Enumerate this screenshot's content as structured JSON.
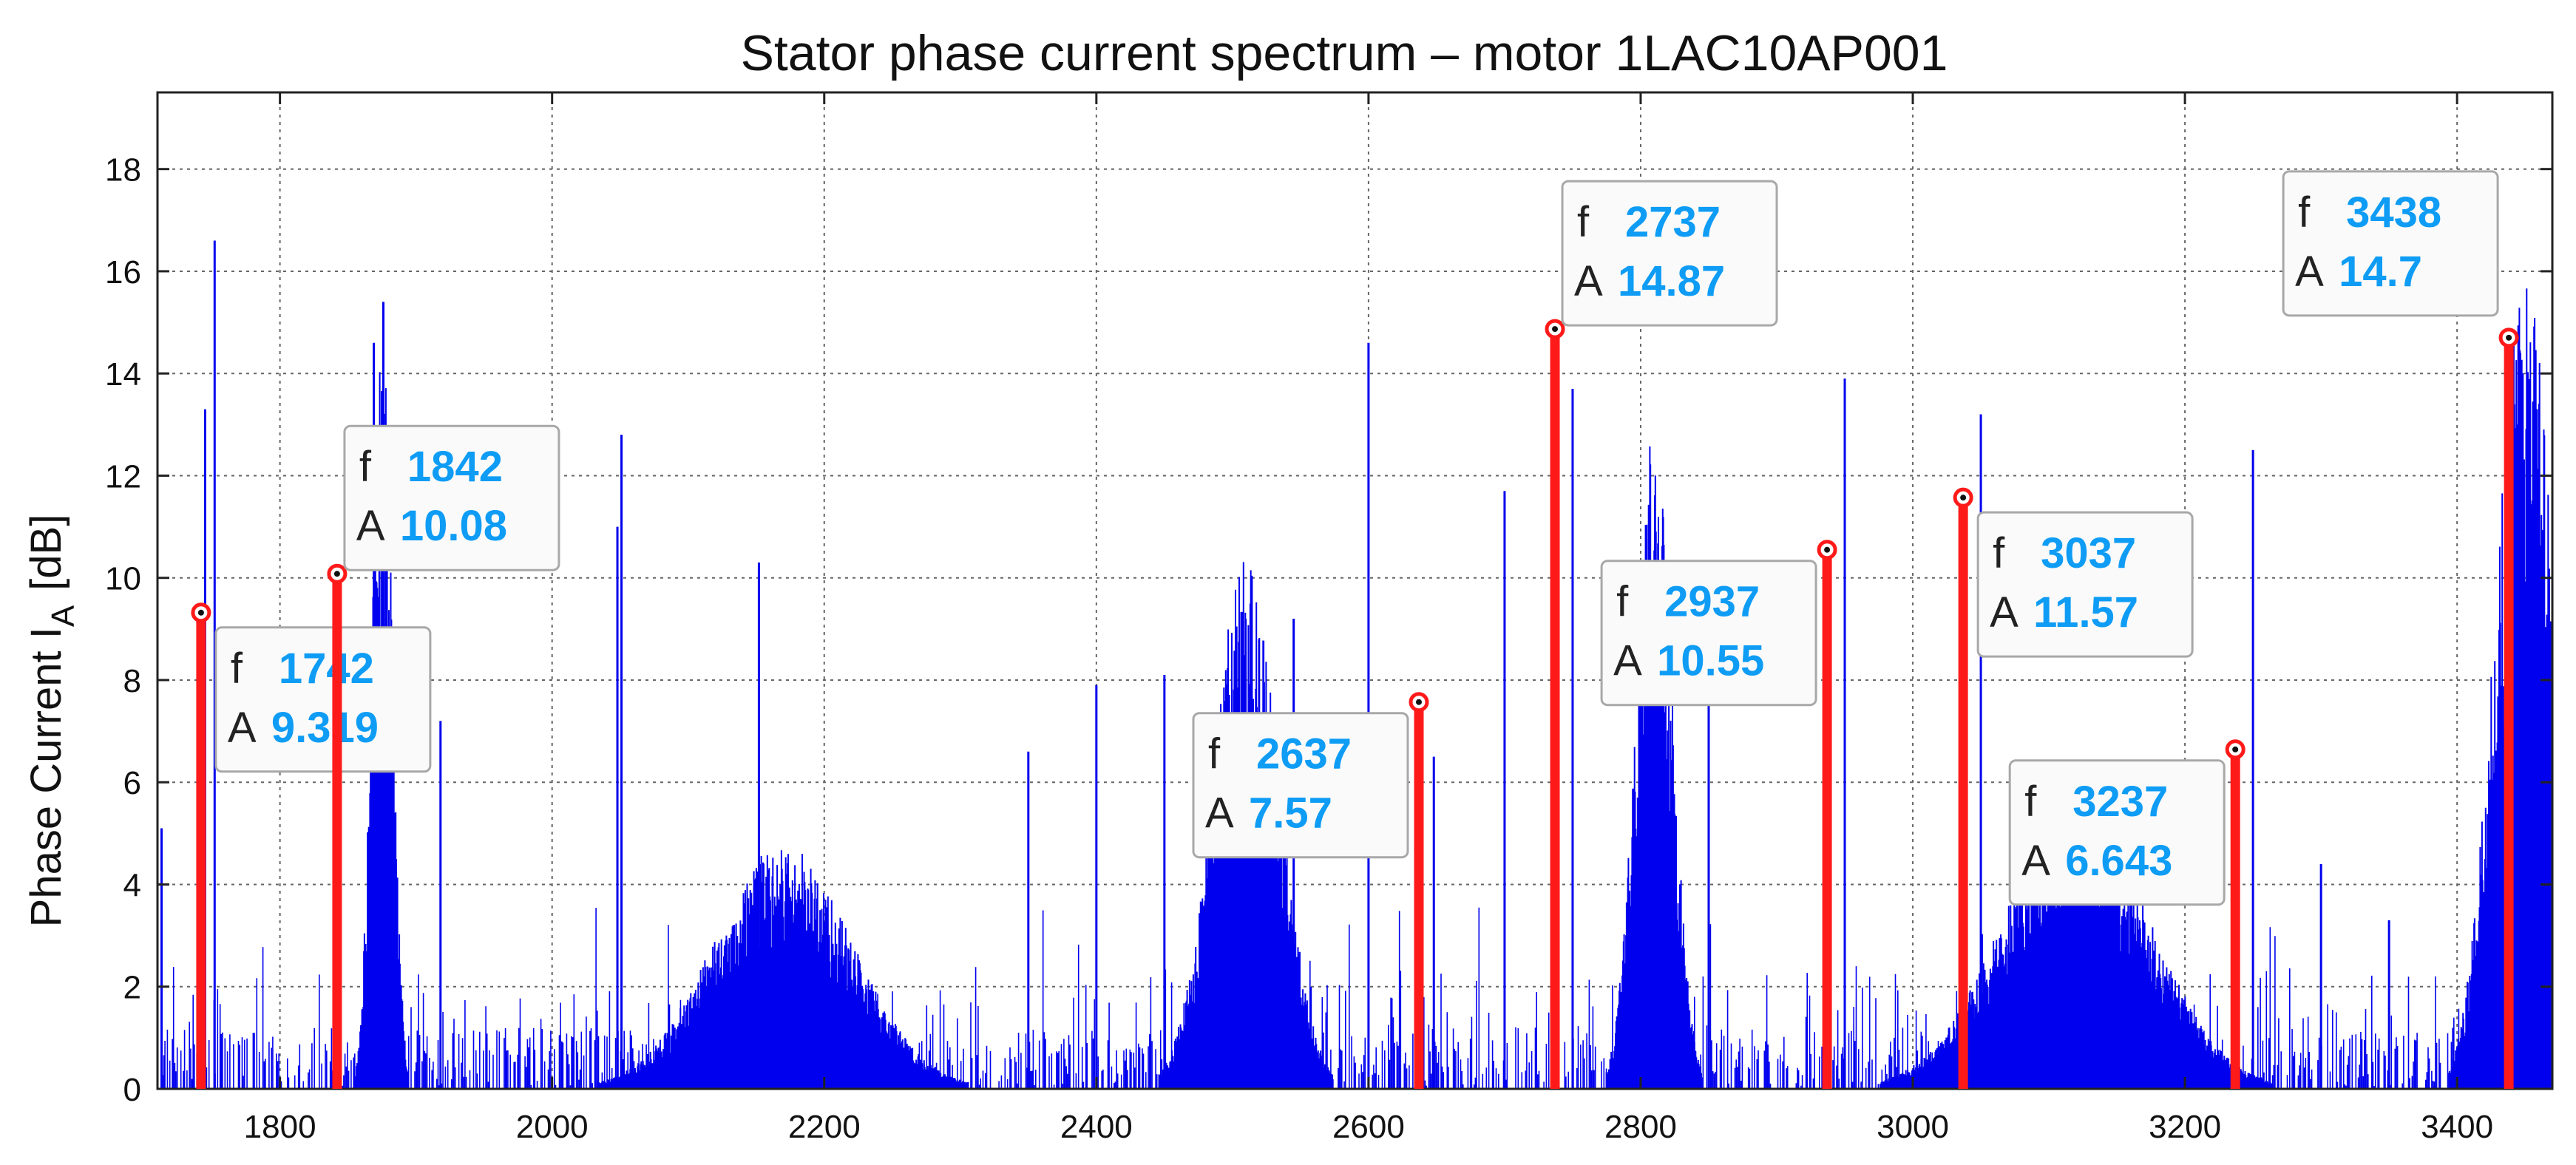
{
  "chart_data": {
    "type": "bar",
    "title": "Stator phase current spectrum  – motor 1LAC10AP001",
    "xlabel": "",
    "ylabel": "Phase Current I",
    "ylabel_subscript": "A",
    "ylabel_unit": "[dB]",
    "xlim": [
      1710,
      3470
    ],
    "ylim": [
      0,
      19.5
    ],
    "x_ticks": [
      1800,
      2000,
      2200,
      2400,
      2600,
      2800,
      3000,
      3200,
      3400
    ],
    "y_ticks": [
      0,
      2,
      4,
      6,
      8,
      10,
      12,
      14,
      16,
      18
    ],
    "grid": true,
    "series_color": "#0000ee",
    "marker_color": "#ff1a1a",
    "box_value_color": "#0e9cf5",
    "spectrum_clusters": [
      {
        "center": 1875,
        "width": 12,
        "peak": 15.4
      },
      {
        "center": 2170,
        "width": 85,
        "peak": 4.8
      },
      {
        "center": 2510,
        "width": 40,
        "peak": 10.5
      },
      {
        "center": 2810,
        "width": 22,
        "peak": 13.2
      },
      {
        "center": 3120,
        "width": 90,
        "peak": 5.5
      },
      {
        "center": 3450,
        "width": 35,
        "peak": 16.5
      }
    ],
    "spectrum_spikes": [
      {
        "x": 1713,
        "y": 5.1
      },
      {
        "x": 1745,
        "y": 13.3
      },
      {
        "x": 1752,
        "y": 16.6
      },
      {
        "x": 1869,
        "y": 14.6
      },
      {
        "x": 1876,
        "y": 15.4
      },
      {
        "x": 1918,
        "y": 7.2
      },
      {
        "x": 2048,
        "y": 11.0
      },
      {
        "x": 2051,
        "y": 12.8
      },
      {
        "x": 2152,
        "y": 10.3
      },
      {
        "x": 2350,
        "y": 6.6
      },
      {
        "x": 2400,
        "y": 7.9
      },
      {
        "x": 2450,
        "y": 8.1
      },
      {
        "x": 2545,
        "y": 9.2
      },
      {
        "x": 2600,
        "y": 14.6
      },
      {
        "x": 2648,
        "y": 6.5
      },
      {
        "x": 2700,
        "y": 11.7
      },
      {
        "x": 2750,
        "y": 13.7
      },
      {
        "x": 2850,
        "y": 7.9
      },
      {
        "x": 2950,
        "y": 13.9
      },
      {
        "x": 3050,
        "y": 13.2
      },
      {
        "x": 3250,
        "y": 12.5
      },
      {
        "x": 3300,
        "y": 4.4
      },
      {
        "x": 3350,
        "y": 3.3
      }
    ],
    "markers": [
      {
        "f": "1742",
        "A": "9.319",
        "x": 1742,
        "y": 9.319,
        "box_side": "right-below"
      },
      {
        "f": "1842",
        "A": "10.08",
        "x": 1842,
        "y": 10.08,
        "box_side": "right-above"
      },
      {
        "f": "2637",
        "A": "7.57",
        "x": 2637,
        "y": 7.57,
        "box_side": "left-below"
      },
      {
        "f": "2737",
        "A": "14.87",
        "x": 2737,
        "y": 14.87,
        "box_side": "right-above"
      },
      {
        "f": "2937",
        "A": "10.55",
        "x": 2937,
        "y": 10.55,
        "box_side": "left-below"
      },
      {
        "f": "3037",
        "A": "11.57",
        "x": 3037,
        "y": 11.57,
        "box_side": "right-below"
      },
      {
        "f": "3237",
        "A": "6.643",
        "x": 3237,
        "y": 6.643,
        "box_side": "left-below"
      },
      {
        "f": "3438",
        "A": "14.7",
        "x": 3438,
        "y": 14.7,
        "box_side": "left-above"
      }
    ],
    "annotation_keys": {
      "freq": "f",
      "amp": "A"
    }
  }
}
